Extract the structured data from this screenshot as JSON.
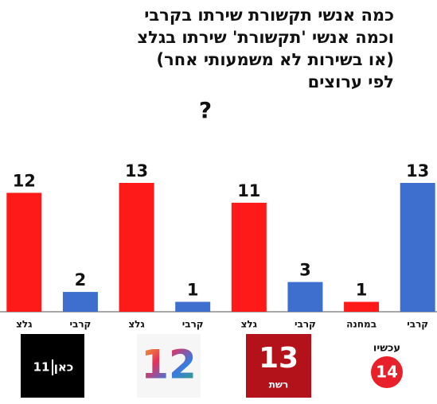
{
  "chart_data": {
    "type": "bar",
    "title": [
      "כמה אנשי תקשורת שירתו בקרבי",
      "וכמה אנשי 'תקשורת' שירתו בגלצ",
      "(או בשירות לא משמעותי אחר)",
      "לפי ערוצים",
      "?"
    ],
    "categories": [
      "גלצ",
      "קרבי",
      "גלצ",
      "קרבי",
      "גלצ",
      "קרבי",
      "במחנה",
      "קרבי"
    ],
    "values": [
      12,
      2,
      13,
      1,
      11,
      3,
      1,
      13
    ],
    "colors": [
      "#ff1a1a",
      "#3f6fce",
      "#ff1a1a",
      "#3f6fce",
      "#ff1a1a",
      "#3f6fce",
      "#ff1a1a",
      "#3f6fce"
    ],
    "ylim": [
      0,
      13
    ]
  },
  "logos": [
    {
      "name": "כאן",
      "number": "11"
    },
    {
      "number": "12"
    },
    {
      "number": "13",
      "name": "רשת"
    },
    {
      "name": "עכשיו",
      "number": "14"
    }
  ]
}
